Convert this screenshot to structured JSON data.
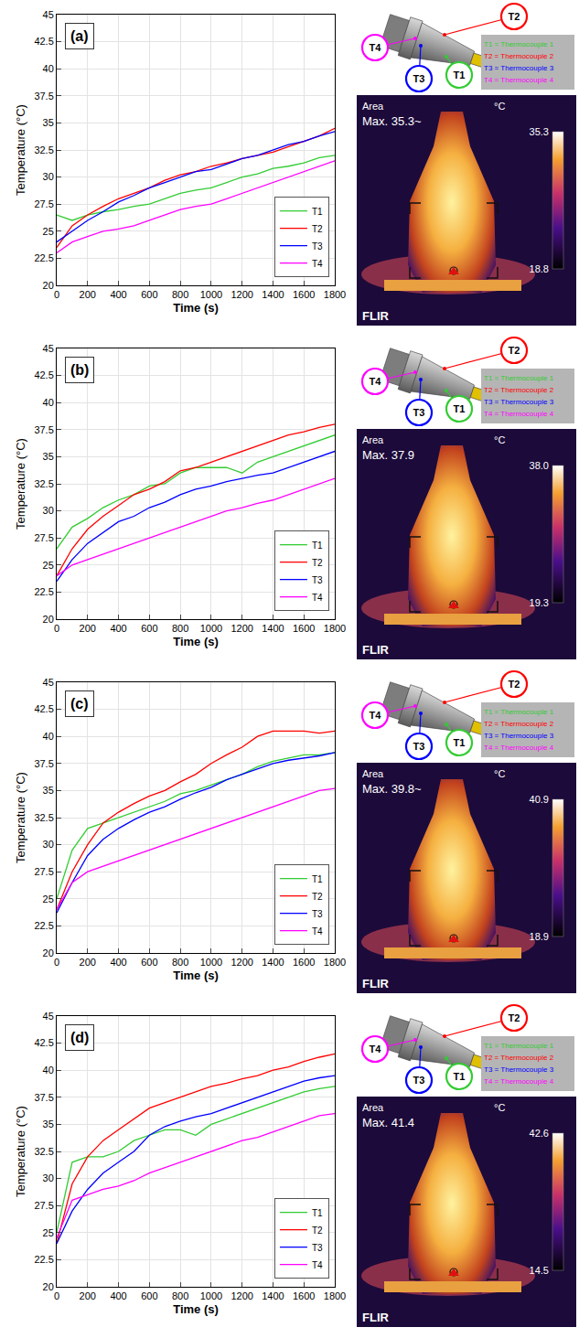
{
  "chart_data": [
    {
      "type": "line",
      "title": "(a)",
      "x_label": "Time (s)",
      "y_label": "Temperature (°C)",
      "x": [
        0,
        100,
        200,
        300,
        400,
        500,
        600,
        700,
        800,
        900,
        1000,
        1100,
        1200,
        1300,
        1400,
        1500,
        1600,
        1700,
        1800
      ],
      "series": [
        {
          "name": "T1",
          "color": "#33cc33",
          "values": [
            26.5,
            26,
            26.5,
            26.8,
            27,
            27.3,
            27.5,
            28,
            28.5,
            28.8,
            29,
            29.5,
            30,
            30.3,
            30.8,
            31,
            31.3,
            31.8,
            32
          ]
        },
        {
          "name": "T2",
          "color": "#ff0000",
          "values": [
            23.5,
            25.5,
            26.5,
            27.3,
            28,
            28.5,
            29,
            29.7,
            30.2,
            30.5,
            31,
            31.3,
            31.7,
            32,
            32.3,
            32.8,
            33.3,
            33.8,
            34.5
          ]
        },
        {
          "name": "T3",
          "color": "#0000ff",
          "values": [
            24,
            25,
            26,
            26.8,
            27.7,
            28.3,
            29,
            29.5,
            30,
            30.5,
            30.7,
            31.2,
            31.7,
            32,
            32.5,
            33,
            33.3,
            33.8,
            34.2
          ]
        },
        {
          "name": "T4",
          "color": "#ff00ff",
          "values": [
            23,
            24,
            24.5,
            25,
            25.2,
            25.5,
            26,
            26.5,
            27,
            27.3,
            27.5,
            28,
            28.5,
            29,
            29.5,
            30,
            30.5,
            31,
            31.5
          ]
        }
      ],
      "xlim": [
        0,
        1800
      ],
      "xticks": [
        0,
        200,
        400,
        600,
        800,
        1000,
        1200,
        1400,
        1600,
        1800
      ],
      "ylim": [
        20,
        45
      ],
      "yticks": [
        20,
        22.5,
        25,
        27.5,
        30,
        32.5,
        35,
        37.5,
        40,
        42.5,
        45
      ],
      "grid": true,
      "legend": "lower right"
    },
    {
      "type": "line",
      "title": "(b)",
      "x_label": "Time (s)",
      "y_label": "Temperature (°C)",
      "x": [
        0,
        100,
        200,
        300,
        400,
        500,
        600,
        700,
        800,
        900,
        1000,
        1100,
        1200,
        1300,
        1400,
        1500,
        1600,
        1700,
        1800
      ],
      "series": [
        {
          "name": "T1",
          "color": "#33cc33",
          "values": [
            26.5,
            28.5,
            29.3,
            30.3,
            31,
            31.5,
            32.3,
            32.5,
            33.5,
            34,
            34,
            34,
            33.5,
            34.5,
            35,
            35.5,
            36,
            36.5,
            37
          ]
        },
        {
          "name": "T2",
          "color": "#ff0000",
          "values": [
            24,
            26.5,
            28.3,
            29.5,
            30.5,
            31.5,
            32,
            32.7,
            33.7,
            34,
            34.5,
            35,
            35.5,
            36,
            36.5,
            37,
            37.3,
            37.7,
            38
          ]
        },
        {
          "name": "T3",
          "color": "#0000ff",
          "values": [
            23.5,
            25.5,
            27,
            28,
            29,
            29.5,
            30.3,
            30.8,
            31.5,
            32,
            32.3,
            32.7,
            33,
            33.3,
            33.5,
            34,
            34.5,
            35,
            35.5
          ]
        },
        {
          "name": "T4",
          "color": "#ff00ff",
          "values": [
            24,
            25,
            25.5,
            26,
            26.5,
            27,
            27.5,
            28,
            28.5,
            29,
            29.5,
            30,
            30.3,
            30.7,
            31,
            31.5,
            32,
            32.5,
            33
          ]
        }
      ],
      "xlim": [
        0,
        1800
      ],
      "xticks": [
        0,
        200,
        400,
        600,
        800,
        1000,
        1200,
        1400,
        1600,
        1800
      ],
      "ylim": [
        20,
        45
      ],
      "yticks": [
        20,
        22.5,
        25,
        27.5,
        30,
        32.5,
        35,
        37.5,
        40,
        42.5,
        45
      ],
      "grid": true,
      "legend": "lower right"
    },
    {
      "type": "line",
      "title": "(c)",
      "x_label": "Time (s)",
      "y_label": "Temperature (°C)",
      "x": [
        0,
        100,
        200,
        300,
        400,
        500,
        600,
        700,
        800,
        900,
        1000,
        1100,
        1200,
        1300,
        1400,
        1500,
        1600,
        1700,
        1800
      ],
      "series": [
        {
          "name": "T1",
          "color": "#33cc33",
          "values": [
            25,
            29.5,
            31.5,
            32,
            32.5,
            33,
            33.5,
            34,
            34.7,
            35,
            35.5,
            36,
            36.5,
            37.2,
            37.7,
            38,
            38.3,
            38.3,
            38.5
          ]
        },
        {
          "name": "T2",
          "color": "#ff0000",
          "values": [
            24,
            27.5,
            30,
            32,
            33,
            33.8,
            34.5,
            35,
            35.8,
            36.5,
            37.5,
            38.3,
            39,
            40,
            40.5,
            40.5,
            40.5,
            40.3,
            40.5
          ]
        },
        {
          "name": "T3",
          "color": "#0000ff",
          "values": [
            23.7,
            26.5,
            29,
            30.5,
            31.5,
            32.3,
            33,
            33.5,
            34.2,
            34.8,
            35.3,
            36,
            36.5,
            37,
            37.5,
            37.8,
            38,
            38.2,
            38.5
          ]
        },
        {
          "name": "T4",
          "color": "#ff00ff",
          "values": [
            24,
            26.5,
            27.5,
            28,
            28.5,
            29,
            29.5,
            30,
            30.5,
            31,
            31.5,
            32,
            32.5,
            33,
            33.5,
            34,
            34.5,
            35,
            35.2
          ]
        }
      ],
      "xlim": [
        0,
        1800
      ],
      "xticks": [
        0,
        200,
        400,
        600,
        800,
        1000,
        1200,
        1400,
        1600,
        1800
      ],
      "ylim": [
        20,
        45
      ],
      "yticks": [
        20,
        22.5,
        25,
        27.5,
        30,
        32.5,
        35,
        37.5,
        40,
        42.5,
        45
      ],
      "grid": true,
      "legend": "lower right"
    },
    {
      "type": "line",
      "title": "(d)",
      "x_label": "Time (s)",
      "y_label": "Temperature (°C)",
      "x": [
        0,
        100,
        200,
        300,
        400,
        500,
        600,
        700,
        800,
        900,
        1000,
        1100,
        1200,
        1300,
        1400,
        1500,
        1600,
        1700,
        1800
      ],
      "series": [
        {
          "name": "T1",
          "color": "#33cc33",
          "values": [
            25,
            31.5,
            32,
            32,
            32.5,
            33.5,
            34,
            34.5,
            34.5,
            34,
            35,
            35.5,
            36,
            36.5,
            37,
            37.5,
            38,
            38.3,
            38.5
          ]
        },
        {
          "name": "T2",
          "color": "#ff0000",
          "values": [
            24,
            29.5,
            32,
            33.5,
            34.5,
            35.5,
            36.5,
            37,
            37.5,
            38,
            38.5,
            38.8,
            39.2,
            39.5,
            40,
            40.3,
            40.8,
            41.2,
            41.5
          ]
        },
        {
          "name": "T3",
          "color": "#0000ff",
          "values": [
            24,
            27,
            29,
            30.5,
            31.5,
            32.5,
            34,
            34.8,
            35.3,
            35.7,
            36,
            36.5,
            37,
            37.5,
            38,
            38.5,
            39,
            39.3,
            39.5
          ]
        },
        {
          "name": "T4",
          "color": "#ff00ff",
          "values": [
            24.5,
            28,
            28.5,
            29,
            29.3,
            29.8,
            30.5,
            31,
            31.5,
            32,
            32.5,
            33,
            33.5,
            33.8,
            34.3,
            34.8,
            35.3,
            35.8,
            36
          ]
        }
      ],
      "xlim": [
        0,
        1800
      ],
      "xticks": [
        0,
        200,
        400,
        600,
        800,
        1000,
        1200,
        1400,
        1600,
        1800
      ],
      "ylim": [
        20,
        45
      ],
      "yticks": [
        20,
        22.5,
        25,
        27.5,
        30,
        32.5,
        35,
        37.5,
        40,
        42.5,
        45
      ],
      "grid": true,
      "legend": "lower right"
    }
  ],
  "thermal_panels": [
    {
      "callouts": [
        {
          "label": "T1",
          "color": "#33cc33"
        },
        {
          "label": "T2",
          "color": "#ff0000"
        },
        {
          "label": "T3",
          "color": "#0000ff"
        },
        {
          "label": "T4",
          "color": "#ff00ff"
        }
      ],
      "key": [
        "T1 = Thermocouple 1",
        "T2 = Thermocouple 2",
        "T3 = Thermocouple 3",
        "T4 = Thermocouple 4"
      ],
      "area_label": "Area",
      "max_label": "Max. 35.3~",
      "unit": "°C",
      "brand": "FLIR",
      "colorbar_range": [
        18.8,
        35.3
      ],
      "colorbar_ticks": [
        {
          "value": 35.3,
          "label": "35.3"
        },
        {
          "value": 18.8,
          "label": "18.8"
        }
      ]
    },
    {
      "callouts": [
        {
          "label": "T1",
          "color": "#33cc33"
        },
        {
          "label": "T2",
          "color": "#ff0000"
        },
        {
          "label": "T3",
          "color": "#0000ff"
        },
        {
          "label": "T4",
          "color": "#ff00ff"
        }
      ],
      "key": [
        "T1 = Thermocouple 1",
        "T2 = Thermocouple 2",
        "T3 = Thermocouple 3",
        "T4 = Thermocouple 4"
      ],
      "area_label": "Area",
      "max_label": "Max. 37.9",
      "unit": "°C",
      "brand": "FLIR",
      "colorbar_range": [
        19.3,
        38
      ],
      "colorbar_ticks": [
        {
          "value": 38,
          "label": "38.0"
        },
        {
          "value": 19.3,
          "label": "19.3"
        }
      ]
    },
    {
      "callouts": [
        {
          "label": "T1",
          "color": "#33cc33"
        },
        {
          "label": "T2",
          "color": "#ff0000"
        },
        {
          "label": "T3",
          "color": "#0000ff"
        },
        {
          "label": "T4",
          "color": "#ff00ff"
        }
      ],
      "key": [
        "T1 = Thermocouple 1",
        "T2 = Thermocouple 2",
        "T3 = Thermocouple 3",
        "T4 = Thermocouple 4"
      ],
      "area_label": "Area",
      "max_label": "Max. 39.8~",
      "unit": "°C",
      "brand": "FLIR",
      "colorbar_range": [
        18.9,
        40.9
      ],
      "colorbar_ticks": [
        {
          "value": 40.9,
          "label": "40.9"
        },
        {
          "value": 18.9,
          "label": "18.9"
        }
      ]
    },
    {
      "callouts": [
        {
          "label": "T1",
          "color": "#33cc33"
        },
        {
          "label": "T2",
          "color": "#ff0000"
        },
        {
          "label": "T3",
          "color": "#0000ff"
        },
        {
          "label": "T4",
          "color": "#ff00ff"
        }
      ],
      "key": [
        "T1 = Thermocouple 1",
        "T2 = Thermocouple 2",
        "T3 = Thermocouple 3",
        "T4 = Thermocouple 4"
      ],
      "area_label": "Area",
      "max_label": "Max. 41.4",
      "unit": "°C",
      "brand": "FLIR",
      "colorbar_range": [
        14.5,
        42.6
      ],
      "colorbar_ticks": [
        {
          "value": 42.6,
          "label": "42.6"
        },
        {
          "value": 14.5,
          "label": "14.5"
        }
      ]
    }
  ]
}
